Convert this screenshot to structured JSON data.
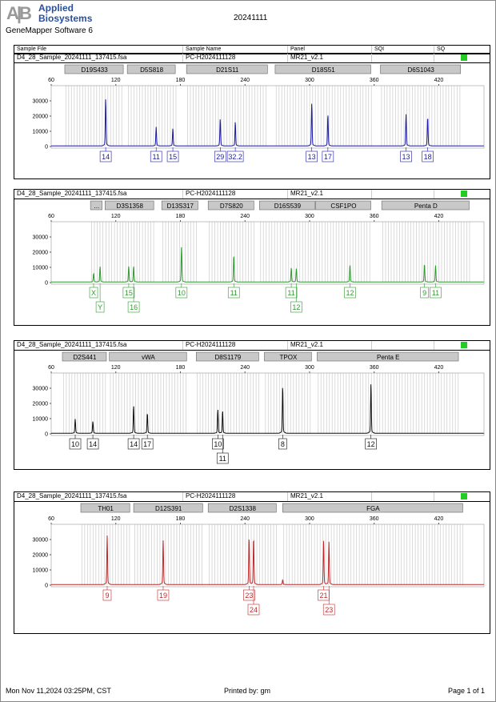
{
  "header": {
    "logo": "Applied Biosystems",
    "logo_mark": "AB",
    "software": "GeneMapper Software 6",
    "title": "20241111"
  },
  "columns": [
    "Sample File",
    "Sample Name",
    "Panel",
    "SQI",
    "SQ"
  ],
  "sample": {
    "file": "D4_28_Sample_20241111_137415.fsa",
    "name": "PC-H2024111128",
    "panel": "MR21_v2.1",
    "sqi": "",
    "sq_color": "#22cc22"
  },
  "axis": {
    "x_ticks": [
      60,
      120,
      180,
      240,
      300,
      360,
      420
    ],
    "y_ticks": [
      0,
      10000,
      20000,
      30000
    ],
    "xlim": [
      60,
      462
    ],
    "ylim": [
      0,
      40000
    ]
  },
  "chart_data": [
    {
      "type": "line",
      "color": "#1a1aa6",
      "loci": [
        {
          "name": "D19S433",
          "start": 72.6,
          "end": 127.7
        },
        {
          "name": "D5S818",
          "start": 130.7,
          "end": 176
        },
        {
          "name": "D21S11",
          "start": 185.7,
          "end": 261.6
        },
        {
          "name": "D18S51",
          "start": 268,
          "end": 357.6
        },
        {
          "name": "D6S1043",
          "start": 365.8,
          "end": 441
        }
      ],
      "peaks": [
        {
          "size": 110.6,
          "height": 30000,
          "allele": "14",
          "row": 0
        },
        {
          "size": 157.5,
          "height": 12000,
          "allele": "11",
          "row": 0
        },
        {
          "size": 173,
          "height": 11000,
          "allele": "15",
          "row": 0
        },
        {
          "size": 217,
          "height": 17000,
          "allele": "29",
          "row": 0
        },
        {
          "size": 231,
          "height": 15500,
          "allele": "32.2",
          "row": 0
        },
        {
          "size": 302,
          "height": 27000,
          "allele": "13",
          "row": 0
        },
        {
          "size": 317,
          "height": 20000,
          "allele": "17",
          "row": 0
        },
        {
          "size": 389.6,
          "height": 20000,
          "allele": "13",
          "row": 0
        },
        {
          "size": 409.7,
          "height": 18500,
          "allele": "18",
          "row": 0
        }
      ]
    },
    {
      "type": "line",
      "color": "#2e9a2e",
      "loci": [
        {
          "name": "...",
          "start": 96.5,
          "end": 108
        },
        {
          "name": "D3S1358",
          "start": 110,
          "end": 156
        },
        {
          "name": "D13S317",
          "start": 162.7,
          "end": 197
        },
        {
          "name": "D7S820",
          "start": 205.8,
          "end": 249
        },
        {
          "name": "D16S539",
          "start": 253.5,
          "end": 305.5
        },
        {
          "name": "CSF1PO",
          "start": 305.5,
          "end": 357.6
        },
        {
          "name": "Penta D",
          "start": 367,
          "end": 449
        }
      ],
      "peaks": [
        {
          "size": 99.4,
          "height": 5500,
          "allele": "X",
          "row": 0
        },
        {
          "size": 105.4,
          "height": 10000,
          "allele": "Y",
          "row": 1
        },
        {
          "size": 132,
          "height": 10000,
          "allele": "15",
          "row": 0
        },
        {
          "size": 136.6,
          "height": 10000,
          "allele": "16",
          "row": 1
        },
        {
          "size": 181,
          "height": 22000,
          "allele": "10",
          "row": 0
        },
        {
          "size": 229.6,
          "height": 17000,
          "allele": "11",
          "row": 0
        },
        {
          "size": 283,
          "height": 9000,
          "allele": "11",
          "row": 0
        },
        {
          "size": 287.7,
          "height": 8500,
          "allele": "12",
          "row": 1
        },
        {
          "size": 337.5,
          "height": 11000,
          "allele": "12",
          "row": 0
        },
        {
          "size": 406.7,
          "height": 11500,
          "allele": "9",
          "row": 0
        },
        {
          "size": 417,
          "height": 10500,
          "allele": "11",
          "row": 0
        }
      ]
    },
    {
      "type": "line",
      "color": "#111111",
      "loci": [
        {
          "name": "D2S441",
          "start": 70.4,
          "end": 112
        },
        {
          "name": "vWA",
          "start": 114,
          "end": 186.5
        },
        {
          "name": "D8S1179",
          "start": 194.7,
          "end": 253.5
        },
        {
          "name": "TPOX",
          "start": 258,
          "end": 302.5
        },
        {
          "name": "Penta E",
          "start": 307,
          "end": 439
        }
      ],
      "peaks": [
        {
          "size": 82.3,
          "height": 9000,
          "allele": "10",
          "row": 0
        },
        {
          "size": 98.7,
          "height": 7500,
          "allele": "14",
          "row": 0
        },
        {
          "size": 136.6,
          "height": 17500,
          "allele": "14",
          "row": 0
        },
        {
          "size": 149.3,
          "height": 13000,
          "allele": "17",
          "row": 0
        },
        {
          "size": 214.8,
          "height": 15000,
          "allele": "10",
          "row": 0
        },
        {
          "size": 219.2,
          "height": 14500,
          "allele": "11",
          "row": 1
        },
        {
          "size": 275,
          "height": 30000,
          "allele": "8",
          "row": 0
        },
        {
          "size": 357,
          "height": 31500,
          "allele": "12",
          "row": 0
        }
      ]
    },
    {
      "type": "line",
      "color": "#c0282a",
      "loci": [
        {
          "name": "TH01",
          "start": 87.5,
          "end": 133.7
        },
        {
          "name": "D12S391",
          "start": 136.6,
          "end": 201.4
        },
        {
          "name": "D2S1338",
          "start": 205.8,
          "end": 269.8
        },
        {
          "name": "FGA",
          "start": 275,
          "end": 443
        }
      ],
      "peaks": [
        {
          "size": 112,
          "height": 31000,
          "allele": "9",
          "row": 0
        },
        {
          "size": 164,
          "height": 28000,
          "allele": "19",
          "row": 0
        },
        {
          "size": 243.8,
          "height": 30000,
          "allele": "23",
          "row": 0
        },
        {
          "size": 248,
          "height": 30000,
          "allele": "24",
          "row": 1
        },
        {
          "size": 275,
          "height": 3000,
          "allele": "",
          "row": 0
        },
        {
          "size": 313,
          "height": 28000,
          "allele": "21",
          "row": 0
        },
        {
          "size": 318,
          "height": 27000,
          "allele": "23",
          "row": 1
        }
      ]
    }
  ],
  "footer": {
    "date": "Mon Nov 11,2024 03:25PM, CST",
    "printed": "Printed by: gm",
    "page": "Page 1 of 1"
  }
}
